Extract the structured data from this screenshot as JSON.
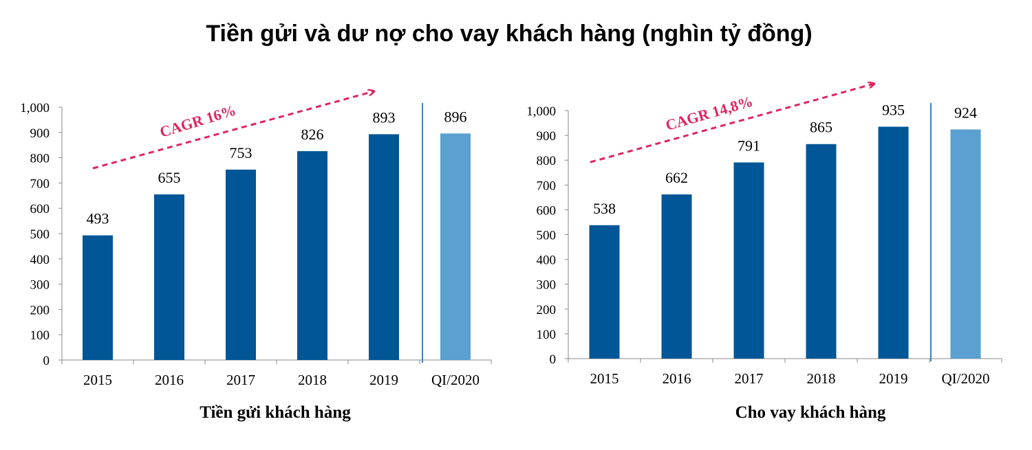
{
  "title": "Tiền gửi và dư nợ cho vay khách hàng (nghìn tỷ đồng)",
  "colors": {
    "bar": "#005696",
    "bar_highlight": "#5aa0d0",
    "annotation": "#e0245e",
    "divider": "#3f7fbf",
    "axis": "#888888"
  },
  "chart_data": [
    {
      "type": "bar",
      "title": "",
      "xlabel": "Tiền gửi khách hàng",
      "ylabel": "",
      "categories": [
        "2015",
        "2016",
        "2017",
        "2018",
        "2019",
        "QI/2020"
      ],
      "values": [
        493,
        655,
        753,
        826,
        893,
        896
      ],
      "value_labels": [
        "493",
        "655",
        "753",
        "826",
        "893",
        "896"
      ],
      "highlighted_category": "QI/2020",
      "ylim": [
        0,
        1000
      ],
      "yticks": [
        0,
        100,
        200,
        300,
        400,
        500,
        600,
        700,
        800,
        900,
        1000
      ],
      "ytick_labels": [
        "0",
        "100",
        "200",
        "300",
        "400",
        "500",
        "600",
        "700",
        "800",
        "900",
        "1,000"
      ],
      "annotation": "CAGR 16%",
      "grid": false
    },
    {
      "type": "bar",
      "title": "",
      "xlabel": "Cho vay khách hàng",
      "ylabel": "",
      "categories": [
        "2015",
        "2016",
        "2017",
        "2018",
        "2019",
        "QI/2020"
      ],
      "values": [
        538,
        662,
        791,
        865,
        935,
        924
      ],
      "value_labels": [
        "538",
        "662",
        "791",
        "865",
        "935",
        "924"
      ],
      "highlighted_category": "QI/2020",
      "ylim": [
        0,
        1000
      ],
      "yticks": [
        0,
        100,
        200,
        300,
        400,
        500,
        600,
        700,
        800,
        900,
        1000
      ],
      "ytick_labels": [
        "0",
        "100",
        "200",
        "300",
        "400",
        "500",
        "600",
        "700",
        "800",
        "900",
        "1,000"
      ],
      "annotation": "CAGR 14,8%",
      "grid": false
    }
  ]
}
